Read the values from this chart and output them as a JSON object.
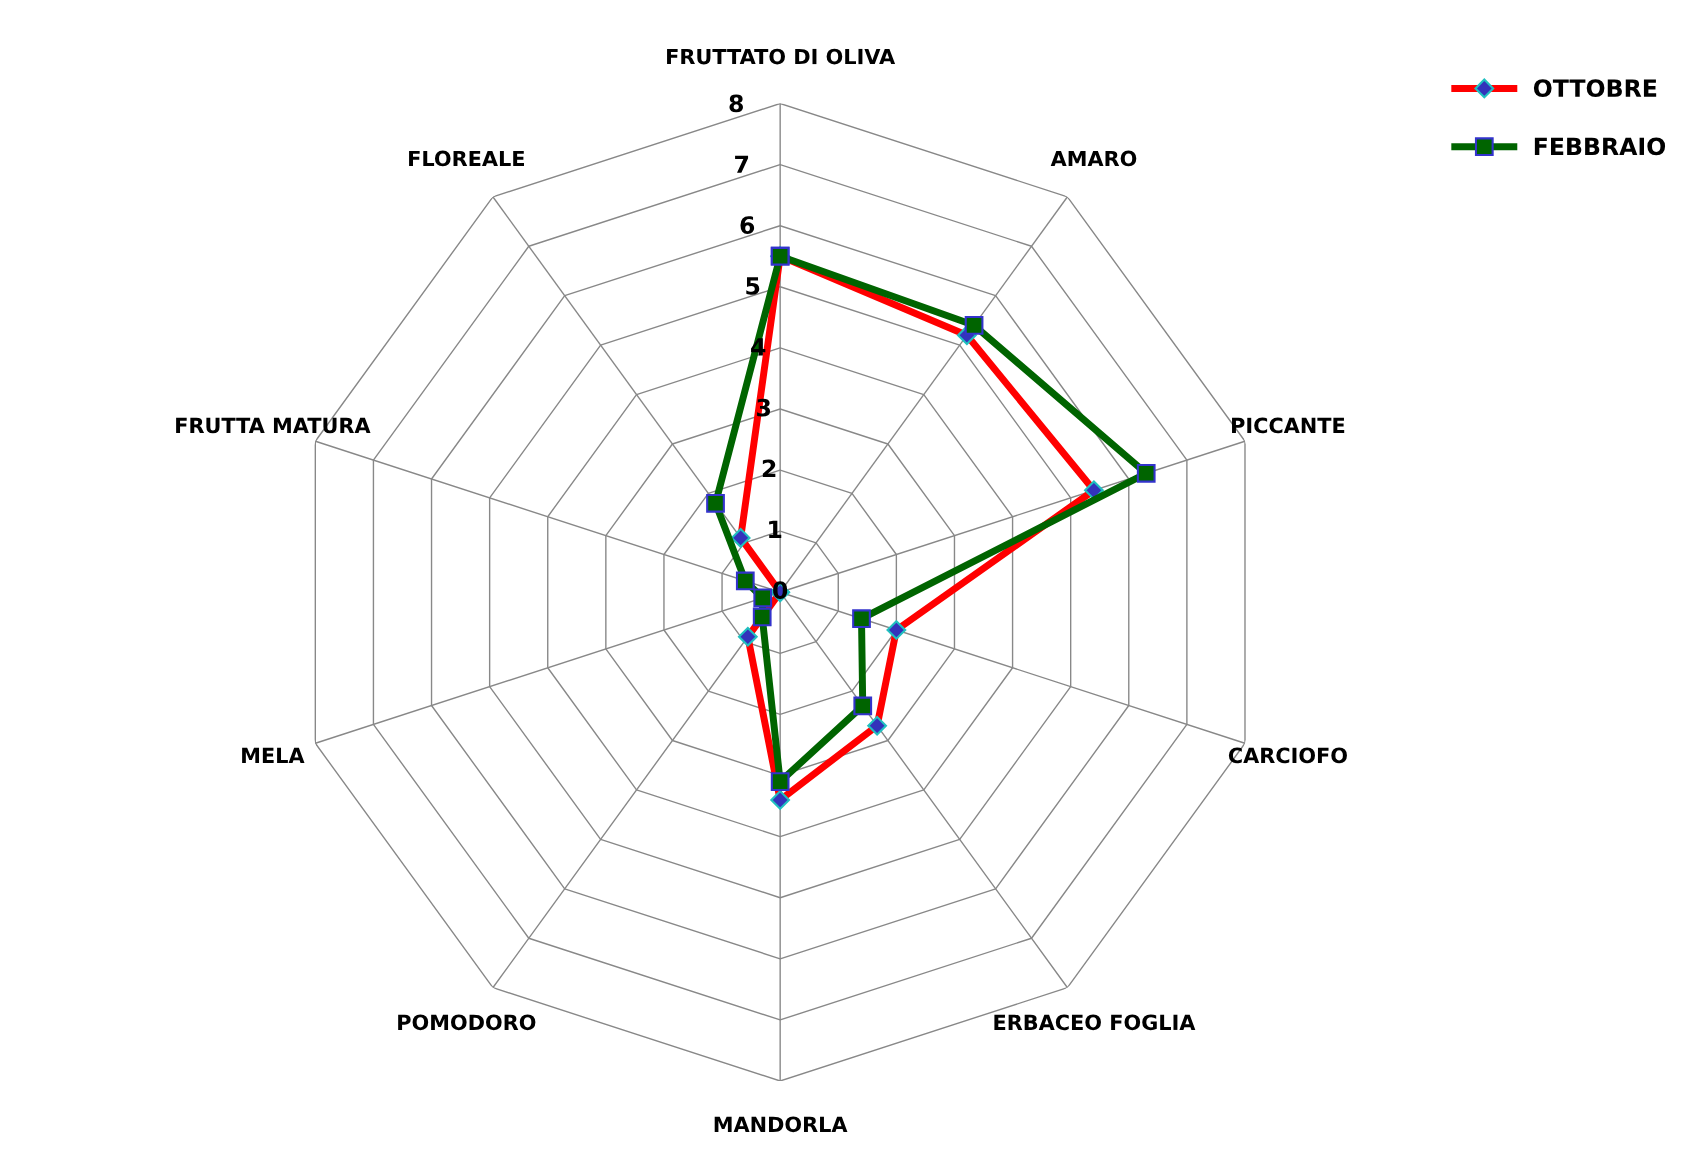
{
  "chart_data": {
    "type": "radar",
    "categories": [
      "FRUTTATO DI OLIVA",
      "AMARO",
      "PICCANTE",
      "CARCIOFO",
      "ERBACEO FOGLIA",
      "MANDORLA",
      "POMODORO",
      "MELA",
      "FRUTTA MATURA",
      "FLOREALE"
    ],
    "ylim": [
      0,
      8
    ],
    "yticks": [
      0,
      1,
      2,
      3,
      4,
      5,
      6,
      7,
      8
    ],
    "grid": true,
    "legend": "top right",
    "series": [
      {
        "name": "OTTOBRE",
        "color": "#ff0000",
        "marker": "diamond",
        "values": [
          5.5,
          5.2,
          5.4,
          2.0,
          2.7,
          3.4,
          0.9,
          0,
          0,
          1.1
        ]
      },
      {
        "name": "FEBBRAIO",
        "color": "#006400",
        "marker": "square",
        "values": [
          5.5,
          5.4,
          6.3,
          1.4,
          2.3,
          3.1,
          0.5,
          0.3,
          0.6,
          1.8
        ]
      }
    ]
  }
}
